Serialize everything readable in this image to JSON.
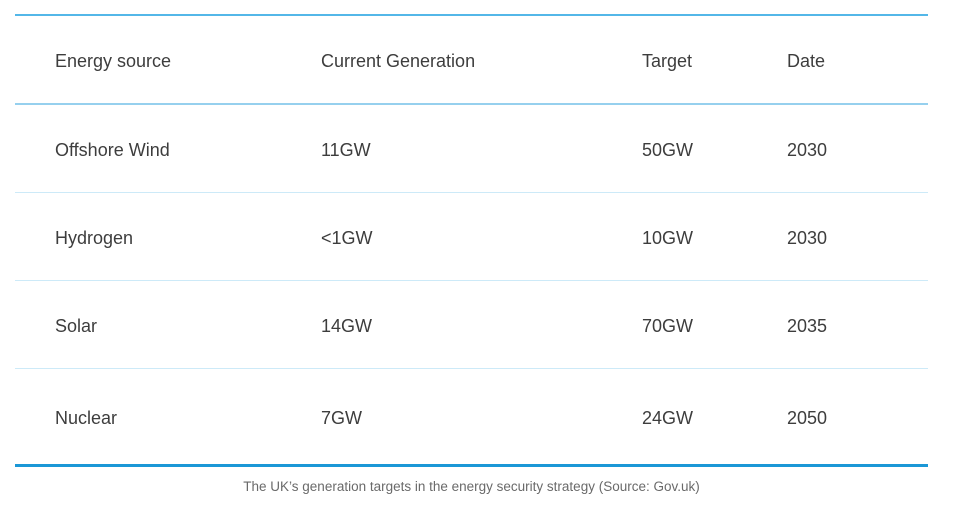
{
  "colors": {
    "top_border": "#53b7e8",
    "header_rule": "#96d0ee",
    "row_rule": "#cdeaf8",
    "bottom_border": "#1b97d6",
    "body_text": "#3d3d3d",
    "caption_text": "#6a6a6a",
    "background": "#ffffff"
  },
  "table": {
    "headers": [
      "Energy source",
      "Current Generation",
      "Target",
      "Date"
    ],
    "rows": [
      [
        "Offshore Wind",
        "11GW",
        "50GW",
        "2030"
      ],
      [
        "Hydrogen",
        "<1GW",
        "10GW",
        "2030"
      ],
      [
        "Solar",
        "14GW",
        "70GW",
        "2035"
      ],
      [
        "Nuclear",
        "7GW",
        "24GW",
        "2050"
      ]
    ]
  },
  "caption": "The UK’s generation targets in the energy security strategy (Source: Gov.uk)",
  "chart_data": {
    "type": "table",
    "title": "",
    "columns": [
      "Energy source",
      "Current Generation",
      "Target",
      "Date"
    ],
    "rows": [
      {
        "energy_source": "Offshore Wind",
        "current_generation": "11GW",
        "target": "50GW",
        "date": "2030"
      },
      {
        "energy_source": "Hydrogen",
        "current_generation": "<1GW",
        "target": "10GW",
        "date": "2030"
      },
      {
        "energy_source": "Solar",
        "current_generation": "14GW",
        "target": "70GW",
        "date": "2035"
      },
      {
        "energy_source": "Nuclear",
        "current_generation": "7GW",
        "target": "24GW",
        "date": "2050"
      }
    ],
    "caption": "The UK’s generation targets in the energy security strategy (Source: Gov.uk)",
    "notes": {
      "units": "GW",
      "layout": "4-column left-aligned table, blue horizontal rules, no vertical rules"
    }
  }
}
